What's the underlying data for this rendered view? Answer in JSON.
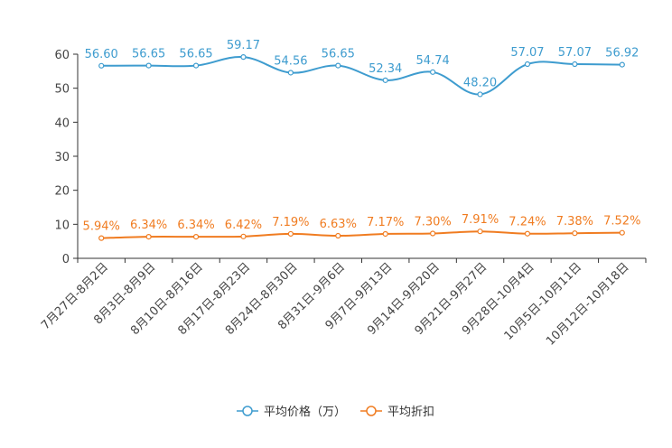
{
  "chart_data": {
    "type": "line",
    "categories": [
      "7月27日-8月2日",
      "8月3日-8月9日",
      "8月10日-8月16日",
      "8月17日-8月23日",
      "8月24日-8月30日",
      "8月31日-9月6日",
      "9月7日-9月13日",
      "9月14日-9月20日",
      "9月21日-9月27日",
      "9月28日-10月4日",
      "10月5日-10月11日",
      "10月12日-10月18日"
    ],
    "series": [
      {
        "name": "平均价格（万）",
        "color": "#3e9ccf",
        "values": [
          56.6,
          56.65,
          56.65,
          59.17,
          54.56,
          56.65,
          52.34,
          54.74,
          48.2,
          57.07,
          57.07,
          56.92
        ],
        "labels": [
          "56.60",
          "56.65",
          "56.65",
          "59.17",
          "54.56",
          "56.65",
          "52.34",
          "54.74",
          "48.20",
          "57.07",
          "57.07",
          "56.92"
        ]
      },
      {
        "name": "平均折扣",
        "color": "#f07c21",
        "values": [
          5.94,
          6.34,
          6.34,
          6.42,
          7.19,
          6.63,
          7.17,
          7.3,
          7.91,
          7.24,
          7.38,
          7.52
        ],
        "labels": [
          "5.94%",
          "6.34%",
          "6.34%",
          "6.42%",
          "7.19%",
          "6.63%",
          "7.17%",
          "7.30%",
          "7.91%",
          "7.24%",
          "7.38%",
          "7.52%"
        ]
      }
    ],
    "yticks": [
      "0",
      "10",
      "20",
      "30",
      "40",
      "50",
      "60"
    ],
    "ylim": [
      0,
      60
    ],
    "title": "",
    "xlabel": "",
    "ylabel": "",
    "grid": false,
    "legend_position": "bottom-center",
    "axis_color": "#333333"
  }
}
